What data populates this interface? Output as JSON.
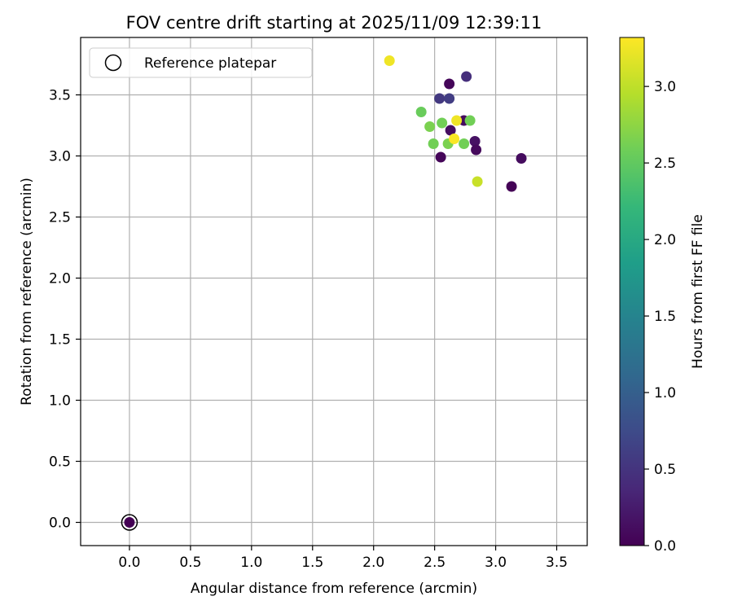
{
  "chart_data": {
    "type": "scatter",
    "title": "FOV centre drift starting at 2025/11/09 12:39:11",
    "xlabel": "Angular distance from reference (arcmin)",
    "ylabel": "Rotation from reference (arcmin)",
    "xlim": [
      -0.4,
      3.75
    ],
    "ylim": [
      -0.19,
      3.97
    ],
    "xticks": [
      "0.0",
      "0.5",
      "1.0",
      "1.5",
      "2.0",
      "2.5",
      "3.0",
      "3.5"
    ],
    "yticks": [
      "0.0",
      "0.5",
      "1.0",
      "1.5",
      "2.0",
      "2.5",
      "3.0",
      "3.5"
    ],
    "grid": true,
    "legend": {
      "position": "top-left",
      "entries": [
        "Reference platepar"
      ]
    },
    "colorbar": {
      "label": "Hours from first FF file",
      "range": [
        0.0,
        3.32
      ],
      "colormap": "viridis",
      "ticks": [
        "0.0",
        "0.5",
        "1.0",
        "1.5",
        "2.0",
        "2.5",
        "3.0"
      ]
    },
    "reference": {
      "x": 0.0,
      "y": 0.0
    },
    "points": [
      {
        "x": 0.0,
        "y": 0.0,
        "hours": 0.0
      },
      {
        "x": 2.62,
        "y": 3.59,
        "hours": 0.05
      },
      {
        "x": 2.74,
        "y": 3.29,
        "hours": 0.1
      },
      {
        "x": 2.63,
        "y": 3.21,
        "hours": 0.12
      },
      {
        "x": 2.83,
        "y": 3.12,
        "hours": 0.15
      },
      {
        "x": 2.84,
        "y": 3.05,
        "hours": 0.08
      },
      {
        "x": 2.55,
        "y": 2.99,
        "hours": 0.05
      },
      {
        "x": 3.21,
        "y": 2.98,
        "hours": 0.1
      },
      {
        "x": 3.13,
        "y": 2.75,
        "hours": 0.02
      },
      {
        "x": 2.76,
        "y": 3.65,
        "hours": 0.45
      },
      {
        "x": 2.54,
        "y": 3.47,
        "hours": 0.55
      },
      {
        "x": 2.62,
        "y": 3.47,
        "hours": 0.6
      },
      {
        "x": 2.39,
        "y": 3.36,
        "hours": 2.55
      },
      {
        "x": 2.56,
        "y": 3.27,
        "hours": 2.6
      },
      {
        "x": 2.46,
        "y": 3.24,
        "hours": 2.65
      },
      {
        "x": 2.79,
        "y": 3.29,
        "hours": 2.6
      },
      {
        "x": 2.49,
        "y": 3.1,
        "hours": 2.6
      },
      {
        "x": 2.61,
        "y": 3.1,
        "hours": 2.65
      },
      {
        "x": 2.74,
        "y": 3.1,
        "hours": 2.6
      },
      {
        "x": 2.13,
        "y": 3.78,
        "hours": 3.25
      },
      {
        "x": 2.68,
        "y": 3.29,
        "hours": 3.25
      },
      {
        "x": 2.66,
        "y": 3.14,
        "hours": 3.3
      },
      {
        "x": 2.85,
        "y": 2.79,
        "hours": 3.05
      }
    ]
  },
  "colors": {
    "axis": "#000000",
    "grid": "#b0b0b0",
    "legend_border": "#cccccc"
  }
}
